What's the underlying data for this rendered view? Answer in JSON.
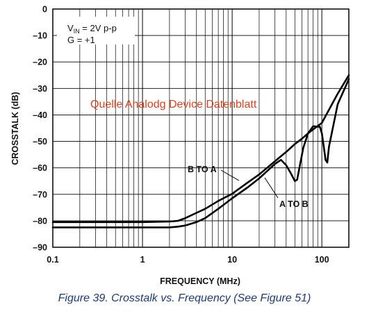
{
  "chart_data": {
    "type": "line",
    "title": "",
    "xlabel": "FREQUENCY (MHz)",
    "ylabel": "CROSSTALK (dB)",
    "x_scale": "log",
    "xlim": [
      0.1,
      200
    ],
    "ylim": [
      -90,
      0
    ],
    "x_ticks": [
      0.1,
      1,
      10,
      100
    ],
    "x_tick_labels": [
      "0.1",
      "1",
      "10",
      "100"
    ],
    "y_ticks": [
      0,
      -10,
      -20,
      -30,
      -40,
      -50,
      -60,
      -70,
      -80,
      -90
    ],
    "y_tick_labels": [
      "0",
      "–10",
      "–20",
      "–30",
      "–40",
      "–50",
      "–60",
      "–70",
      "–80",
      "–90"
    ],
    "grid": true,
    "conditions": {
      "line1": "2V p-p",
      "line2": "G = +1"
    },
    "series": [
      {
        "name": "B TO A",
        "color": "#000000",
        "x": [
          0.1,
          0.5,
          1,
          2,
          2.5,
          3,
          4,
          5,
          7,
          10,
          15,
          20,
          30,
          40,
          50,
          60,
          70,
          80,
          90,
          100,
          150,
          200
        ],
        "y": [
          -80.5,
          -80.5,
          -80.5,
          -80.3,
          -80,
          -79,
          -77,
          -75.5,
          -72.5,
          -69.8,
          -65.5,
          -62.5,
          -57.5,
          -54,
          -51,
          -49,
          -47,
          -45.5,
          -44.2,
          -43,
          -32,
          -25
        ]
      },
      {
        "name": "A TO B",
        "color": "#000000",
        "x": [
          0.1,
          0.5,
          1,
          2,
          2.5,
          3,
          4,
          5,
          7,
          10,
          15,
          20,
          30,
          35,
          40,
          45,
          50,
          53,
          57,
          62,
          70,
          80,
          95,
          100,
          105,
          110,
          115,
          120,
          150,
          200
        ],
        "y": [
          -82.5,
          -82.5,
          -82.5,
          -82.5,
          -82.2,
          -81.8,
          -80.5,
          -79,
          -75.5,
          -71.5,
          -67.3,
          -64,
          -58.5,
          -57,
          -59,
          -62,
          -65,
          -64.5,
          -59,
          -52.5,
          -47,
          -44.3,
          -44.5,
          -47,
          -52,
          -57,
          -58,
          -52,
          -36,
          -26.5
        ]
      }
    ]
  },
  "watermark": "Quelle Analodg Device Datenblatt",
  "caption": "Figure 39. Crosstalk vs. Frequency (See Figure 51)"
}
